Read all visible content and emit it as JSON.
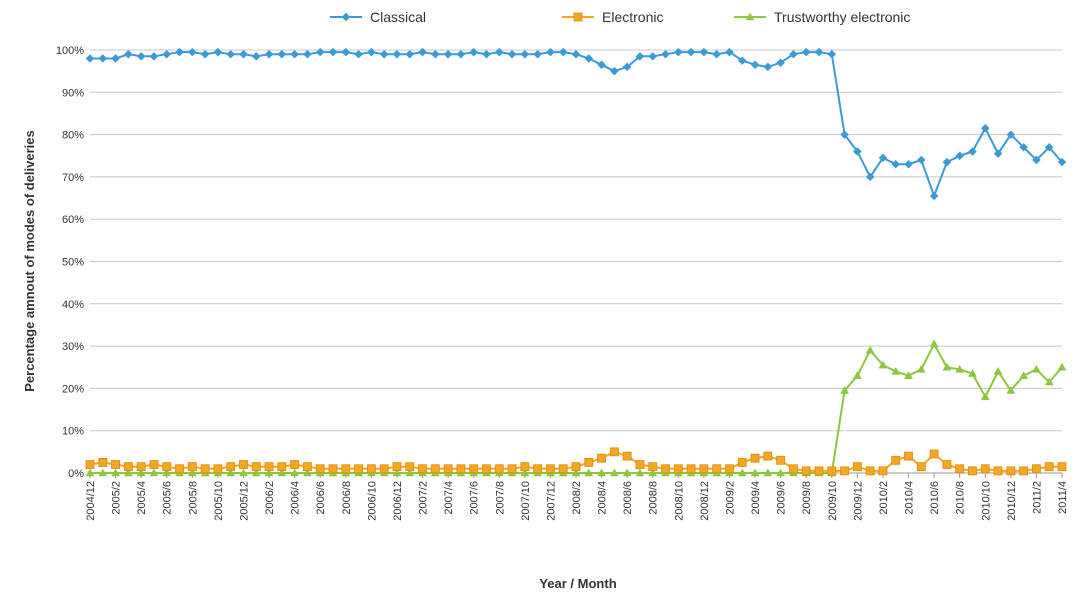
{
  "chart_data": {
    "type": "line",
    "title": "",
    "xlabel": "Year / Month",
    "ylabel": "Percentage amnout of modes of deliveries",
    "ylim": [
      0,
      100
    ],
    "y_ticks": [
      "0%",
      "10%",
      "20%",
      "30%",
      "40%",
      "50%",
      "60%",
      "70%",
      "80%",
      "90%",
      "100%"
    ],
    "grid": "horizontal",
    "legend_position": "top",
    "x": [
      "2004/12",
      "2005/1",
      "2005/2",
      "2005/3",
      "2005/4",
      "2005/5",
      "2005/6",
      "2005/7",
      "2005/8",
      "2005/9",
      "2005/10",
      "2005/11",
      "2005/12",
      "2006/1",
      "2006/2",
      "2006/3",
      "2006/4",
      "2006/5",
      "2006/6",
      "2006/7",
      "2006/8",
      "2006/9",
      "2006/10",
      "2006/11",
      "2006/12",
      "2007/1",
      "2007/2",
      "2007/3",
      "2007/4",
      "2007/5",
      "2007/6",
      "2007/7",
      "2007/8",
      "2007/9",
      "2007/10",
      "2007/11",
      "2007/12",
      "2008/1",
      "2008/2",
      "2008/3",
      "2008/4",
      "2008/5",
      "2008/6",
      "2008/7",
      "2008/8",
      "2008/9",
      "2008/10",
      "2008/11",
      "2008/12",
      "2009/1",
      "2009/2",
      "2009/3",
      "2009/4",
      "2009/5",
      "2009/6",
      "2009/7",
      "2009/8",
      "2009/9",
      "2009/10",
      "2009/11",
      "2009/12",
      "2010/1",
      "2010/2",
      "2010/3",
      "2010/4",
      "2010/5",
      "2010/6",
      "2010/7",
      "2010/8",
      "2010/9",
      "2010/10",
      "2010/11",
      "2010/12",
      "2011/1",
      "2011/2",
      "2011/3",
      "2011/4"
    ],
    "x_tick_labels": [
      "2004/12",
      "2005/2",
      "2005/4",
      "2005/6",
      "2005/8",
      "2005/10",
      "2005/12",
      "2006/2",
      "2006/4",
      "2006/6",
      "2006/8",
      "2006/10",
      "2006/12",
      "2007/2",
      "2007/4",
      "2007/6",
      "2007/8",
      "2007/10",
      "2007/12",
      "2008/2",
      "2008/4",
      "2008/6",
      "2008/8",
      "2008/10",
      "2008/12",
      "2009/2",
      "2009/4",
      "2009/6",
      "2009/8",
      "2009/10",
      "2009/12",
      "2010/2",
      "2010/4",
      "2010/6",
      "2010/8",
      "2010/10",
      "2010/12",
      "2011/2",
      "2011/4"
    ],
    "series": [
      {
        "name": "Classical",
        "color": "#3a9bd5",
        "marker": "diamond",
        "values": [
          98,
          98,
          98,
          99,
          98.5,
          98.5,
          99,
          99.5,
          99.5,
          99,
          99.5,
          99,
          99,
          98.5,
          99,
          99,
          99,
          99,
          99.5,
          99.5,
          99.5,
          99,
          99.5,
          99,
          99,
          99,
          99.5,
          99,
          99,
          99,
          99.5,
          99,
          99.5,
          99,
          99,
          99,
          99.5,
          99.5,
          99,
          98,
          96.5,
          95,
          96,
          98.5,
          98.5,
          99,
          99.5,
          99.5,
          99.5,
          99,
          99.5,
          97.5,
          96.5,
          96,
          97,
          99,
          99.5,
          99.5,
          99,
          80,
          76,
          70,
          74.5,
          73,
          73,
          74,
          65.5,
          73.5,
          75,
          76,
          81.5,
          75.5,
          80,
          77,
          74,
          77,
          73.5
        ]
      },
      {
        "name": "Electronic",
        "color": "#f5a623",
        "marker": "square",
        "values": [
          2,
          2.5,
          2,
          1.5,
          1.5,
          2,
          1.5,
          1,
          1.5,
          1,
          1,
          1.5,
          2,
          1.5,
          1.5,
          1.5,
          2,
          1.5,
          1,
          1,
          1,
          1,
          1,
          1,
          1.5,
          1.5,
          1,
          1,
          1,
          1,
          1,
          1,
          1,
          1,
          1.5,
          1,
          1,
          1,
          1.5,
          2.5,
          3.5,
          5,
          4,
          2,
          1.5,
          1,
          1,
          1,
          1,
          1,
          1,
          2.5,
          3.5,
          4,
          3,
          1,
          0.5,
          0.5,
          0.5,
          0.5,
          1.5,
          0.5,
          0.5,
          3,
          4,
          1.5,
          4.5,
          2,
          1,
          0.5,
          1,
          0.5,
          0.5,
          0.5,
          1,
          1.5,
          1.5
        ]
      },
      {
        "name": "Trustworthy electronic",
        "color": "#8dc63f",
        "marker": "triangle",
        "values": [
          0,
          0,
          0,
          0,
          0,
          0,
          0,
          0,
          0,
          0,
          0,
          0,
          0,
          0,
          0,
          0,
          0,
          0,
          0,
          0,
          0,
          0,
          0,
          0,
          0,
          0,
          0,
          0,
          0,
          0,
          0,
          0,
          0,
          0,
          0,
          0,
          0,
          0,
          0,
          0,
          0,
          0,
          0,
          0,
          0,
          0,
          0,
          0,
          0,
          0,
          0,
          0,
          0,
          0,
          0,
          0,
          0,
          0,
          0,
          19.5,
          23,
          29,
          25.5,
          24,
          23,
          24.5,
          30.5,
          25,
          24.5,
          23.5,
          18,
          24,
          19.5,
          23,
          24.5,
          21.5,
          25
        ]
      }
    ]
  }
}
